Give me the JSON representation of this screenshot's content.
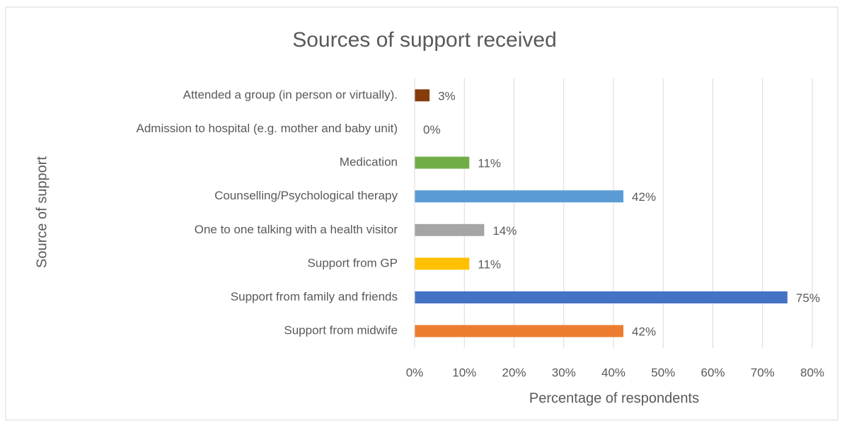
{
  "chart_data": {
    "type": "bar",
    "orientation": "horizontal",
    "title": "Sources of support received",
    "x_label": "Percentage of respondents",
    "y_label": "Source of support",
    "categories": [
      "Attended a group (in person or virtually).",
      "Admission to hospital (e.g. mother and baby unit)",
      "Medication",
      "Counselling/Psychological therapy",
      "One to one talking with a health visitor",
      "Support from GP",
      "Support from family and friends",
      "Support from midwife"
    ],
    "values": [
      3,
      0,
      11,
      42,
      14,
      11,
      75,
      42
    ],
    "value_labels": [
      "3%",
      "0%",
      "11%",
      "42%",
      "14%",
      "11%",
      "75%",
      "42%"
    ],
    "colors": [
      "#843c0c",
      "#264478",
      "#70ad47",
      "#5b9bd5",
      "#a5a5a5",
      "#ffc000",
      "#4472c4",
      "#ed7d31"
    ],
    "xlim": [
      0,
      80
    ],
    "xticks": [
      {
        "value": 0,
        "label": "0%"
      },
      {
        "value": 10,
        "label": "10%"
      },
      {
        "value": 20,
        "label": "20%"
      },
      {
        "value": 30,
        "label": "30%"
      },
      {
        "value": 40,
        "label": "40%"
      },
      {
        "value": 50,
        "label": "50%"
      },
      {
        "value": 60,
        "label": "60%"
      },
      {
        "value": 70,
        "label": "70%"
      },
      {
        "value": 80,
        "label": "80%"
      }
    ],
    "grid": true
  }
}
